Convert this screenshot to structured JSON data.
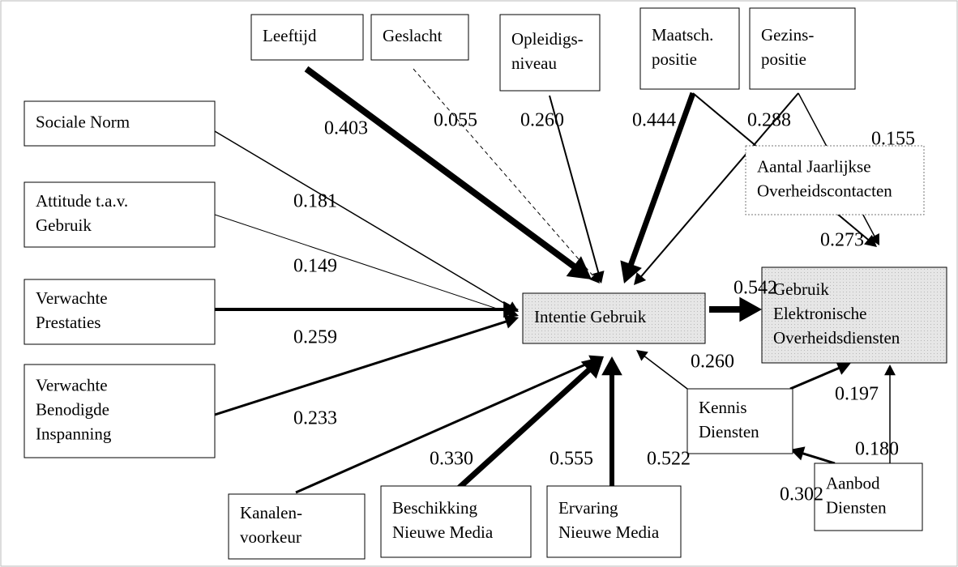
{
  "nodes": [
    {
      "label": [
        "Leeftijd"
      ]
    },
    {
      "label": [
        "Geslacht"
      ]
    },
    {
      "label": [
        "Opleidigs-",
        "niveau"
      ]
    },
    {
      "label": [
        "Maatsch.",
        "positie"
      ]
    },
    {
      "label": [
        "Gezins-",
        "positie"
      ]
    },
    {
      "label": [
        "Sociale Norm"
      ]
    },
    {
      "label": [
        "Attitude t.a.v.",
        "Gebruik"
      ]
    },
    {
      "label": [
        "Verwachte",
        "Prestaties"
      ]
    },
    {
      "label": [
        "Verwachte",
        "Benodigde",
        "Inspanning"
      ]
    },
    {
      "label": [
        "Intentie Gebruik"
      ]
    },
    {
      "label": [
        "Aantal Jaarlijkse",
        "Overheidscontacten"
      ]
    },
    {
      "label": [
        "Gebruik",
        "Elektronische",
        "Overheidsdiensten"
      ]
    },
    {
      "label": [
        "Kennis",
        "Diensten"
      ]
    },
    {
      "label": [
        "Kanalen-",
        "voorkeur"
      ]
    },
    {
      "label": [
        "Beschikking",
        "Nieuwe Media"
      ]
    },
    {
      "label": [
        "Ervaring",
        "Nieuwe Media"
      ]
    },
    {
      "label": [
        "Aanbod",
        "Diensten"
      ]
    }
  ],
  "edges": [
    {
      "label": "0.403"
    },
    {
      "label": "0.055"
    },
    {
      "label": "0.260"
    },
    {
      "label": "0.444"
    },
    {
      "label": "0.288"
    },
    {
      "label": "0.155"
    },
    {
      "label": "0.273"
    },
    {
      "label": "0.181"
    },
    {
      "label": "0.149"
    },
    {
      "label": "0.259"
    },
    {
      "label": "0.233"
    },
    {
      "label": "0.330"
    },
    {
      "label": "0.555"
    },
    {
      "label": "0.522"
    },
    {
      "label": "0.260"
    },
    {
      "label": "0.542"
    },
    {
      "label": "0.197"
    },
    {
      "label": "0.302"
    },
    {
      "label": "0.180"
    }
  ]
}
